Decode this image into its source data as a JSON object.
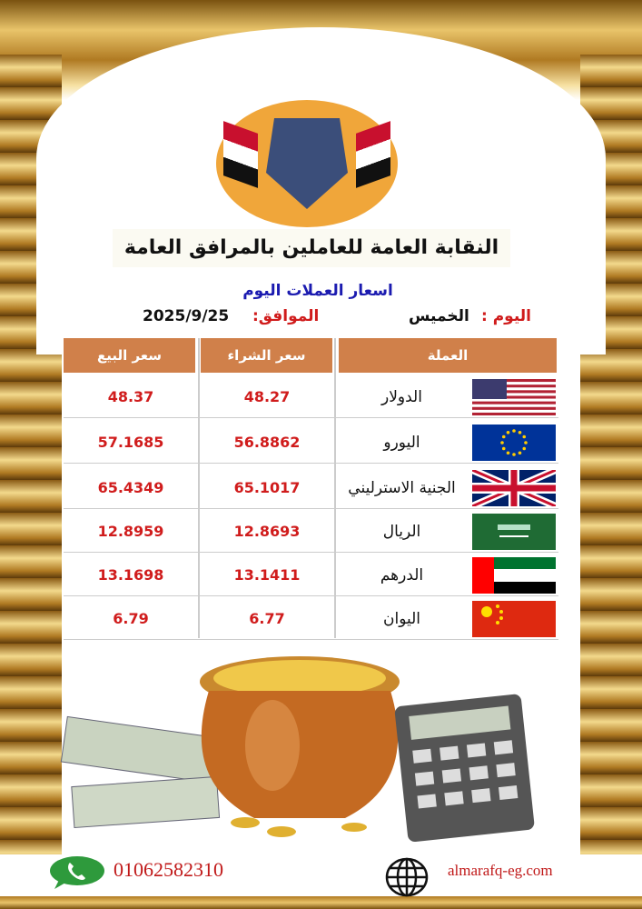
{
  "organization": "النقابة العامة للعاملين بالمرافق العامة",
  "subtitle": "اسعار العملات اليوم",
  "day_label": "اليوم :",
  "day_value": "الخميس",
  "date_label": "الموافق:",
  "date_value": "2025/9/25",
  "table": {
    "headers": {
      "currency": "العملة",
      "buy": "سعر الشراء",
      "sell": "سعر البيع"
    },
    "rows": [
      {
        "currency": "الدولار",
        "flag": "us-flag",
        "buy": "48.27",
        "sell": "48.37"
      },
      {
        "currency": "اليورو",
        "flag": "eu-flag",
        "buy": "56.8862",
        "sell": "57.1685"
      },
      {
        "currency": "الجنية الاسترليني",
        "flag": "uk-flag",
        "buy": "65.1017",
        "sell": "65.4349"
      },
      {
        "currency": "الريال",
        "flag": "saudi-flag",
        "buy": "12.8693",
        "sell": "12.8959"
      },
      {
        "currency": "الدرهم",
        "flag": "uae-flag",
        "buy": "13.1411",
        "sell": "13.1698"
      },
      {
        "currency": "اليوان",
        "flag": "china-flag",
        "buy": "6.77",
        "sell": "6.79"
      }
    ]
  },
  "footer": {
    "phone": "01062582310",
    "website": "almarafq-eg.com"
  },
  "colors": {
    "header_bg": "#d0804a",
    "price_text": "#d01c1c",
    "subtitle": "#1b1bb0"
  }
}
